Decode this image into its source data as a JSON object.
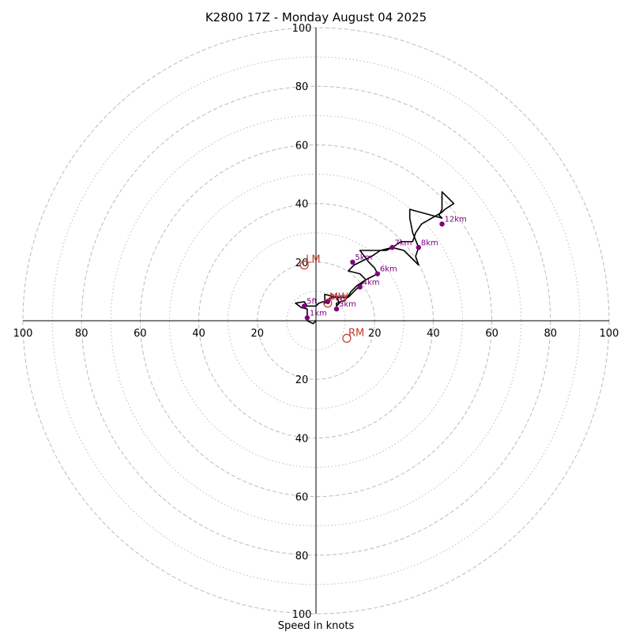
{
  "chart_data": {
    "type": "scatter",
    "subtype": "hodograph",
    "title": "K2800 17Z - Monday August 04 2025",
    "xlabel": "Speed in knots",
    "range": 100,
    "xlim": [
      -100,
      100
    ],
    "ylim": [
      -100,
      100
    ],
    "ring_labels": [
      "20",
      "40",
      "60",
      "80",
      "100"
    ],
    "ring_values": [
      20,
      40,
      60,
      80,
      100
    ],
    "dotted_rings": [
      10,
      30,
      50,
      70,
      90
    ],
    "grid": true,
    "colors": {
      "trace": "#000000",
      "height_marker": "#800080",
      "storm_motion": "#c0392b",
      "grid": "#bbbbbb",
      "axes": "#000000"
    },
    "trace": [
      [
        0,
        0
      ],
      [
        -1,
        -1
      ],
      [
        -3,
        0
      ],
      [
        -3,
        2
      ],
      [
        -3,
        4
      ],
      [
        -5,
        4.5
      ],
      [
        -7,
        6
      ],
      [
        -4,
        6.5
      ],
      [
        -3,
        5
      ],
      [
        0,
        5
      ],
      [
        1,
        6
      ],
      [
        4,
        7
      ],
      [
        3,
        6
      ],
      [
        3,
        9
      ],
      [
        7,
        8
      ],
      [
        8,
        6
      ],
      [
        7,
        5
      ],
      [
        7,
        6
      ],
      [
        10,
        7
      ],
      [
        12,
        10
      ],
      [
        14,
        12
      ],
      [
        17,
        14
      ],
      [
        19,
        15
      ],
      [
        21,
        16
      ],
      [
        20,
        18
      ],
      [
        18,
        20
      ],
      [
        15,
        24
      ],
      [
        17,
        24
      ],
      [
        21,
        24
      ],
      [
        24,
        24
      ],
      [
        26,
        25
      ],
      [
        30,
        24
      ],
      [
        35,
        19
      ],
      [
        34,
        22
      ],
      [
        35,
        25
      ],
      [
        33,
        30
      ],
      [
        32,
        35
      ],
      [
        32,
        38
      ],
      [
        43,
        35
      ],
      [
        42,
        36
      ],
      [
        43,
        38
      ],
      [
        43,
        39
      ],
      [
        43,
        44
      ],
      [
        47,
        40
      ],
      [
        44,
        38
      ],
      [
        43,
        37
      ],
      [
        36,
        33
      ],
      [
        34,
        30
      ],
      [
        33,
        27
      ],
      [
        29,
        27
      ],
      [
        26,
        25
      ],
      [
        22,
        24
      ],
      [
        19,
        22
      ],
      [
        13,
        19
      ],
      [
        11,
        17
      ],
      [
        15,
        16
      ],
      [
        17,
        14
      ],
      [
        15,
        12
      ],
      [
        13,
        10
      ],
      [
        11,
        8
      ],
      [
        8,
        8
      ],
      [
        6,
        8
      ],
      [
        5,
        8
      ],
      [
        4,
        7
      ]
    ],
    "height_markers": [
      {
        "label": "1km",
        "x": -3,
        "y": 1
      },
      {
        "label": "5ft",
        "x": -4,
        "y": 5
      },
      {
        "label": "2km",
        "x": 4,
        "y": 6.5
      },
      {
        "label": "3km",
        "x": 7,
        "y": 4
      },
      {
        "label": "4km",
        "x": 15,
        "y": 11.5
      },
      {
        "label": "5km",
        "x": 12.5,
        "y": 20
      },
      {
        "label": "6km",
        "x": 21,
        "y": 16
      },
      {
        "label": "7km",
        "x": 26,
        "y": 25
      },
      {
        "label": "8km",
        "x": 35,
        "y": 25
      },
      {
        "label": "12km",
        "x": 43,
        "y": 33
      }
    ],
    "storm_motions": [
      {
        "label": "LM",
        "x": -4,
        "y": 19
      },
      {
        "label": "MW",
        "x": 4,
        "y": 6
      },
      {
        "label": "RM",
        "x": 10.5,
        "y": -6
      }
    ]
  }
}
